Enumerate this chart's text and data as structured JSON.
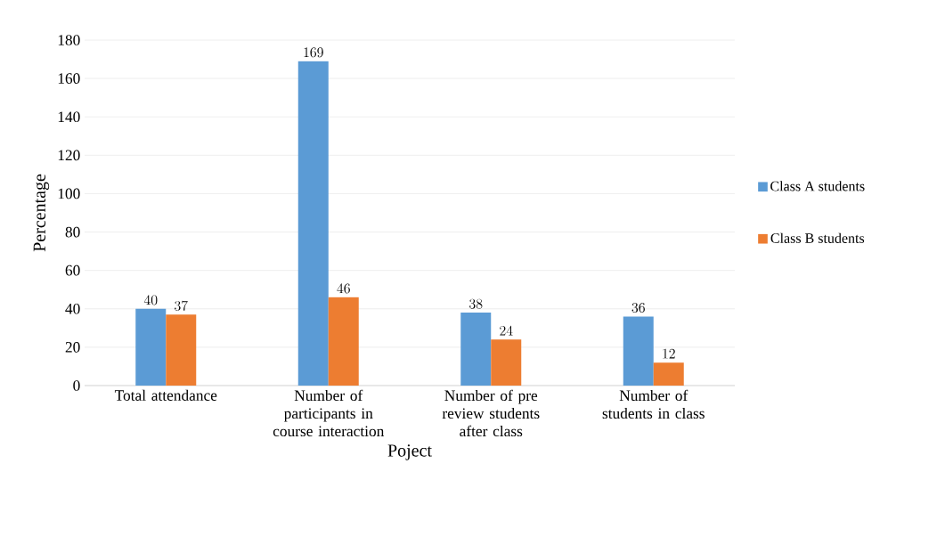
{
  "chart_data": {
    "type": "bar",
    "xlabel": "Poject",
    "ylabel": "Percentage",
    "categories": [
      "Total attendance",
      "Number of participants in course interaction",
      "Number of pre review students after class",
      "Number of students in class"
    ],
    "series": [
      {
        "name": "Class A students",
        "color": "#5b9bd5",
        "values": [
          40,
          169,
          38,
          36
        ]
      },
      {
        "name": "Class B students",
        "color": "#ed7d31",
        "values": [
          37,
          46,
          24,
          12
        ]
      }
    ],
    "ylim": [
      0,
      180
    ],
    "yticks": [
      0,
      20,
      40,
      60,
      80,
      100,
      120,
      140,
      160,
      180
    ],
    "grid": "y",
    "legend": "right",
    "data_labels": true
  }
}
